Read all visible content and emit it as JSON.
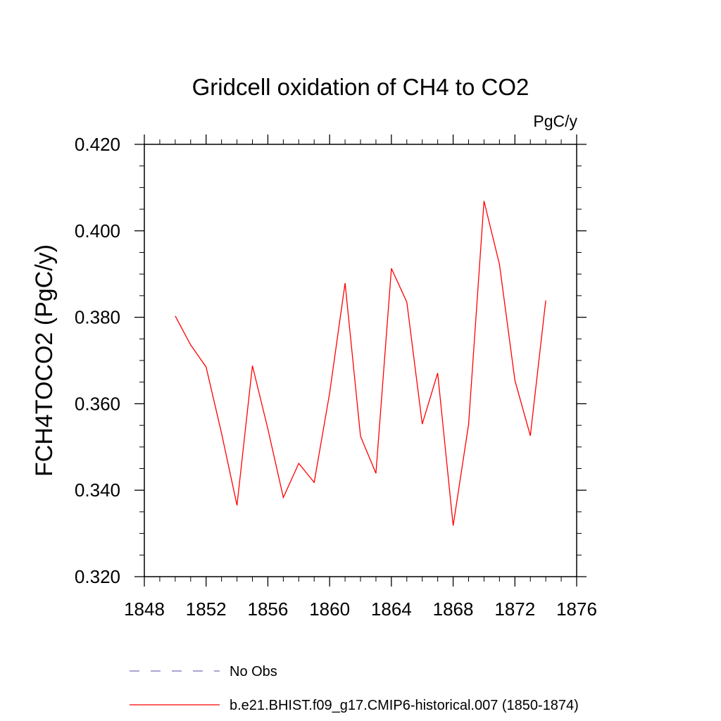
{
  "chart_data": {
    "type": "line",
    "title": "Gridcell oxidation of CH4 to CO2",
    "units": "PgC/y",
    "ylabel": "FCH4TOCO2  (PgC/y)",
    "xlabel": "",
    "xlim": [
      1848,
      1876
    ],
    "ylim": [
      0.32,
      0.42
    ],
    "xticks": [
      1848,
      1852,
      1856,
      1860,
      1864,
      1868,
      1872,
      1876
    ],
    "xtick_labels": [
      "1848",
      "1852",
      "1856",
      "1860",
      "1864",
      "1868",
      "1872",
      "1876"
    ],
    "yticks": [
      0.32,
      0.34,
      0.36,
      0.38,
      0.4,
      0.42
    ],
    "ytick_labels": [
      "0.320",
      "0.340",
      "0.360",
      "0.380",
      "0.400",
      "0.420"
    ],
    "grid": false,
    "legend_position": "bottom",
    "series": [
      {
        "name": "b.e21.BHIST.f09_g17.CMIP6-historical.007 (1850-1874)",
        "color": "#ff0000",
        "style": "solid",
        "x": [
          1850,
          1851,
          1852,
          1853,
          1854,
          1855,
          1856,
          1857,
          1858,
          1859,
          1860,
          1861,
          1862,
          1863,
          1864,
          1865,
          1866,
          1867,
          1868,
          1869,
          1870,
          1871,
          1872,
          1873,
          1874
        ],
        "y": [
          0.3803,
          0.3736,
          0.3685,
          0.3532,
          0.3365,
          0.3688,
          0.3542,
          0.3383,
          0.3462,
          0.3418,
          0.3624,
          0.3879,
          0.3525,
          0.3439,
          0.3913,
          0.3835,
          0.3553,
          0.3671,
          0.3318,
          0.3552,
          0.4069,
          0.3922,
          0.3654,
          0.3526,
          0.3839
        ]
      }
    ],
    "legend": [
      {
        "label": "No Obs",
        "color": "#7b6fb8",
        "style": "dashed"
      },
      {
        "label": "b.e21.BHIST.f09_g17.CMIP6-historical.007 (1850-1874)",
        "color": "#ff0000",
        "style": "solid"
      }
    ]
  }
}
